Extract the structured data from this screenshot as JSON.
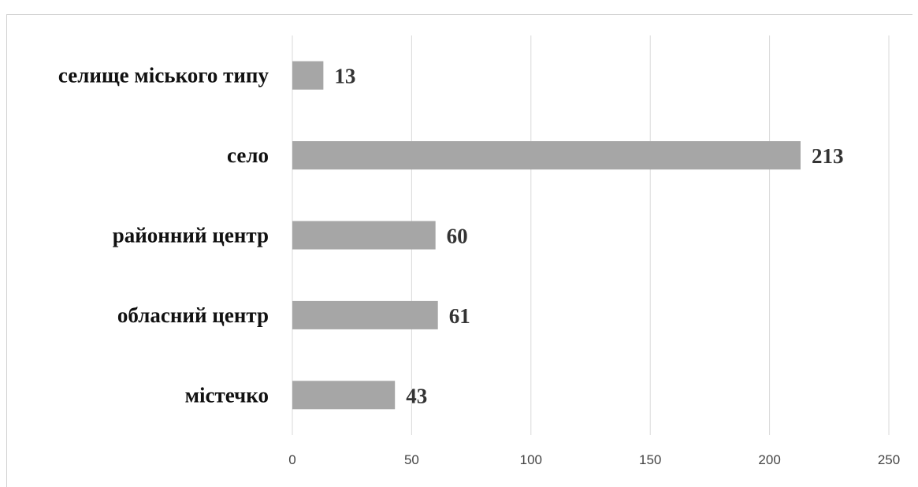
{
  "chart_data": {
    "type": "bar",
    "orientation": "horizontal",
    "categories": [
      "селище міського типу",
      "село",
      "районний центр",
      "обласний центр",
      "містечко"
    ],
    "values": [
      13,
      213,
      60,
      61,
      43
    ],
    "data_labels": [
      "13",
      "213",
      "60",
      "61",
      "43"
    ],
    "xticks": [
      "0",
      "50",
      "100",
      "150",
      "200",
      "250"
    ],
    "xlim": [
      0,
      250
    ],
    "title": "",
    "xlabel": "",
    "ylabel": "",
    "grid": "vertical",
    "legend": "none",
    "bar_color": "#a6a6a6"
  }
}
